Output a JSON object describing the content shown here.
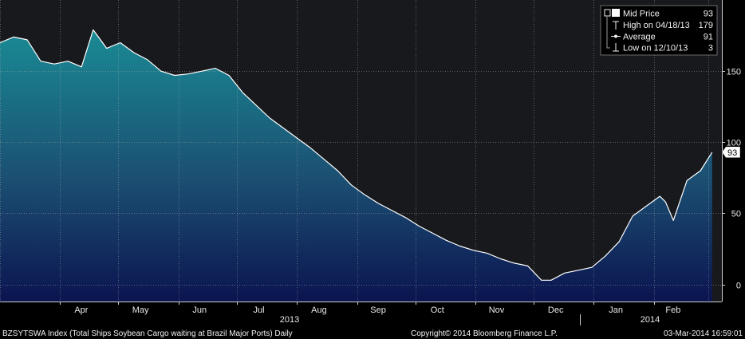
{
  "chart_data": {
    "type": "area",
    "ylim": [
      -12,
      200
    ],
    "y_ticks": [
      0,
      50,
      100,
      150
    ],
    "x_months": [
      "Apr",
      "May",
      "Jun",
      "Jul",
      "Aug",
      "Sep",
      "Oct",
      "Nov",
      "Dec",
      "Jan",
      "Feb"
    ],
    "year_labels": [
      "2013",
      "2014"
    ],
    "series": [
      {
        "name": "Mid Price",
        "last_value": 93,
        "x": [
          "2013-03-01",
          "2013-03-08",
          "2013-03-15",
          "2013-03-22",
          "2013-03-29",
          "2013-04-05",
          "2013-04-12",
          "2013-04-18",
          "2013-04-25",
          "2013-05-02",
          "2013-05-09",
          "2013-05-16",
          "2013-05-23",
          "2013-05-30",
          "2013-06-06",
          "2013-06-13",
          "2013-06-20",
          "2013-06-27",
          "2013-07-04",
          "2013-07-11",
          "2013-07-18",
          "2013-07-25",
          "2013-08-01",
          "2013-08-08",
          "2013-08-15",
          "2013-08-22",
          "2013-08-29",
          "2013-09-05",
          "2013-09-12",
          "2013-09-19",
          "2013-09-26",
          "2013-10-03",
          "2013-10-10",
          "2013-10-17",
          "2013-10-24",
          "2013-10-31",
          "2013-11-07",
          "2013-11-14",
          "2013-11-21",
          "2013-11-28",
          "2013-12-05",
          "2013-12-10",
          "2013-12-17",
          "2013-12-24",
          "2013-12-31",
          "2014-01-07",
          "2014-01-14",
          "2014-01-21",
          "2014-01-28",
          "2014-02-04",
          "2014-02-07",
          "2014-02-11",
          "2014-02-18",
          "2014-02-25",
          "2014-03-03"
        ],
        "values": [
          170,
          174,
          172,
          157,
          155,
          157,
          153,
          179,
          166,
          170,
          163,
          158,
          150,
          147,
          148,
          150,
          152,
          147,
          135,
          126,
          117,
          110,
          103,
          96,
          88,
          80,
          70,
          63,
          57,
          52,
          47,
          41,
          36,
          31,
          27,
          24,
          22,
          18,
          15,
          13,
          3,
          3,
          8,
          10,
          12,
          20,
          30,
          48,
          55,
          62,
          58,
          45,
          73,
          80,
          93
        ]
      }
    ],
    "legend": [
      {
        "icon": "square-icon",
        "label": "Mid Price",
        "value": "93"
      },
      {
        "icon": "high-marker-icon",
        "label": "High on 04/18/13",
        "value": "179"
      },
      {
        "icon": "average-marker-icon",
        "label": "Average",
        "value": "91"
      },
      {
        "icon": "low-marker-icon",
        "label": "Low on 12/10/13",
        "value": "3"
      }
    ],
    "legend_position": "top-right",
    "grid": true,
    "colors": {
      "background": "#17191d",
      "line": "#ffffff",
      "fill_top": "#1a8a94",
      "fill_mid": "#1b4f72",
      "fill_bottom": "#0b1450",
      "grid": "#b4b4b4"
    }
  },
  "footer": {
    "left": "BZSYTSWA Index (Total Ships Soybean Cargo waiting at Brazil Major Ports)  Daily",
    "center": "Copyright© 2014 Bloomberg Finance L.P.",
    "right": "03-Mar-2014 16:59:01"
  }
}
